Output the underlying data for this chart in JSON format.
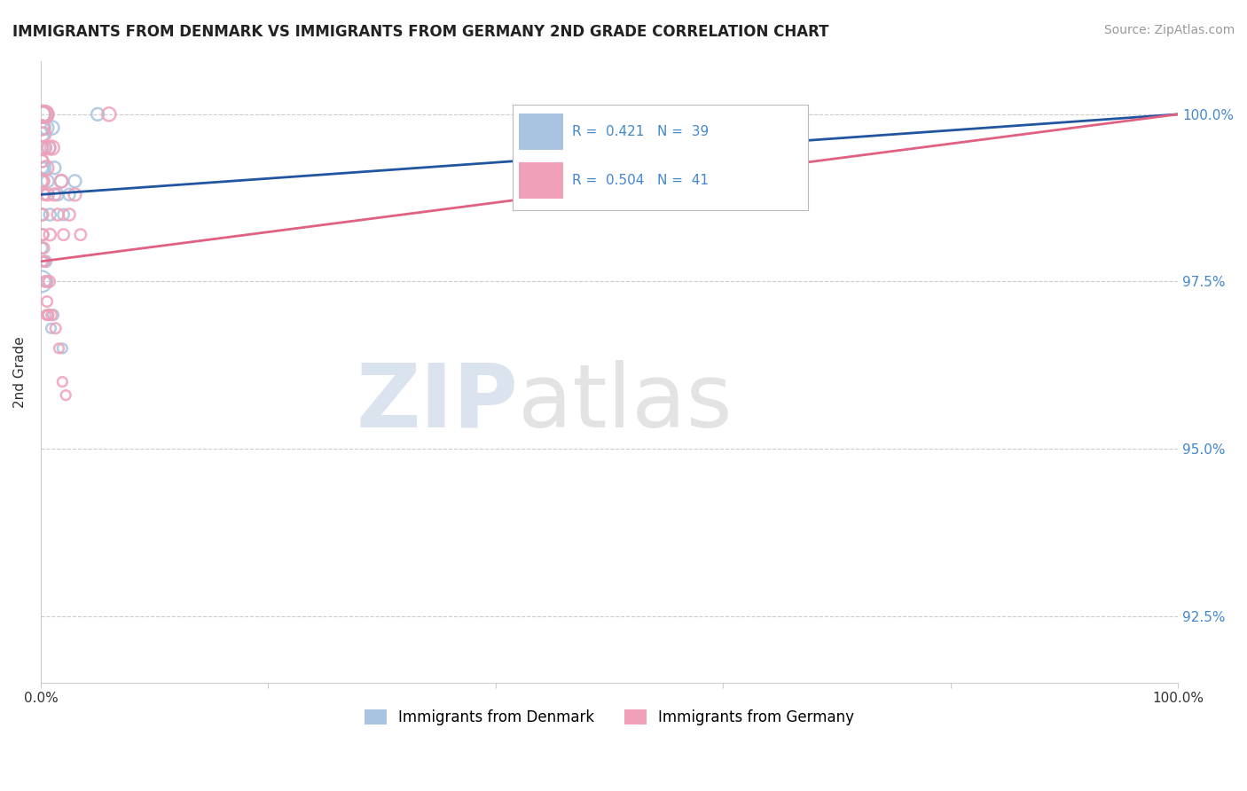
{
  "title": "IMMIGRANTS FROM DENMARK VS IMMIGRANTS FROM GERMANY 2ND GRADE CORRELATION CHART",
  "source": "Source: ZipAtlas.com",
  "xlabel": "",
  "ylabel": "2nd Grade",
  "r_denmark": 0.421,
  "n_denmark": 39,
  "r_germany": 0.504,
  "n_germany": 41,
  "color_denmark": "#a8c4e0",
  "color_germany": "#f0a0b8",
  "line_color_denmark": "#2255a0",
  "line_color_germany": "#e06080",
  "xmin": 0.0,
  "xmax": 100.0,
  "ymin": 91.5,
  "ymax": 100.8,
  "yticks": [
    92.5,
    95.0,
    97.5,
    100.0
  ],
  "ytick_labels": [
    "92.5%",
    "95.0%",
    "97.5%",
    "100.0%"
  ],
  "xticks": [
    0.0,
    20.0,
    40.0,
    60.0,
    80.0,
    100.0
  ],
  "xtick_labels": [
    "0.0%",
    "",
    "",
    "",
    "",
    "100.0%"
  ],
  "watermark_zip": "ZIP",
  "watermark_atlas": "atlas",
  "background_color": "#ffffff",
  "denmark_x": [
    0.05,
    0.05,
    0.05,
    0.1,
    0.1,
    0.1,
    0.15,
    0.15,
    0.2,
    0.2,
    0.25,
    0.3,
    0.35,
    0.4,
    0.4,
    0.5,
    0.6,
    0.7,
    0.8,
    1.0,
    1.2,
    1.5,
    1.8,
    2.0,
    2.5,
    3.0,
    0.05,
    0.08,
    0.12,
    0.18,
    0.38,
    0.45,
    0.55,
    0.65,
    0.9,
    1.1,
    1.9,
    5.0,
    0.03
  ],
  "denmark_y": [
    100.0,
    99.8,
    99.5,
    100.0,
    99.7,
    99.3,
    100.0,
    99.2,
    100.0,
    99.0,
    99.8,
    99.5,
    99.2,
    100.0,
    98.8,
    99.8,
    99.0,
    99.5,
    98.5,
    99.8,
    99.2,
    98.8,
    99.0,
    98.5,
    98.8,
    99.0,
    98.5,
    98.0,
    97.8,
    98.2,
    97.5,
    97.8,
    97.5,
    97.0,
    96.8,
    97.0,
    96.5,
    100.0,
    97.5
  ],
  "denmark_sizes": [
    200,
    150,
    100,
    180,
    130,
    100,
    150,
    80,
    160,
    90,
    120,
    100,
    90,
    180,
    70,
    130,
    100,
    110,
    90,
    120,
    100,
    90,
    100,
    80,
    90,
    100,
    90,
    80,
    70,
    80,
    70,
    80,
    70,
    70,
    60,
    70,
    60,
    100,
    300
  ],
  "germany_x": [
    0.1,
    0.1,
    0.1,
    0.15,
    0.15,
    0.2,
    0.2,
    0.25,
    0.3,
    0.3,
    0.35,
    0.4,
    0.5,
    0.6,
    0.7,
    0.8,
    1.0,
    1.2,
    1.5,
    1.8,
    2.0,
    2.5,
    3.0,
    3.5,
    0.15,
    0.25,
    0.35,
    0.45,
    0.55,
    0.65,
    0.75,
    0.95,
    1.3,
    1.6,
    1.9,
    2.2,
    0.08,
    0.18,
    0.28,
    0.48,
    6.0
  ],
  "germany_y": [
    100.0,
    99.8,
    99.5,
    100.0,
    99.3,
    100.0,
    99.0,
    99.7,
    100.0,
    98.8,
    99.5,
    100.0,
    99.2,
    98.8,
    99.5,
    98.2,
    99.5,
    98.8,
    98.5,
    99.0,
    98.2,
    98.5,
    98.8,
    98.2,
    98.5,
    98.0,
    97.8,
    97.5,
    97.2,
    97.0,
    97.5,
    97.0,
    96.8,
    96.5,
    96.0,
    95.8,
    99.0,
    98.2,
    97.8,
    97.0,
    100.0
  ],
  "germany_sizes": [
    200,
    150,
    100,
    180,
    90,
    170,
    100,
    130,
    200,
    80,
    120,
    180,
    130,
    100,
    120,
    90,
    130,
    100,
    90,
    110,
    80,
    90,
    100,
    80,
    90,
    80,
    70,
    80,
    70,
    70,
    80,
    70,
    70,
    60,
    60,
    60,
    90,
    80,
    70,
    60,
    120
  ],
  "trendline_x_start": 0.0,
  "trendline_x_end": 100.0,
  "denmark_trend_y_start": 98.8,
  "denmark_trend_y_end": 100.0,
  "germany_trend_y_start": 97.8,
  "germany_trend_y_end": 100.0
}
